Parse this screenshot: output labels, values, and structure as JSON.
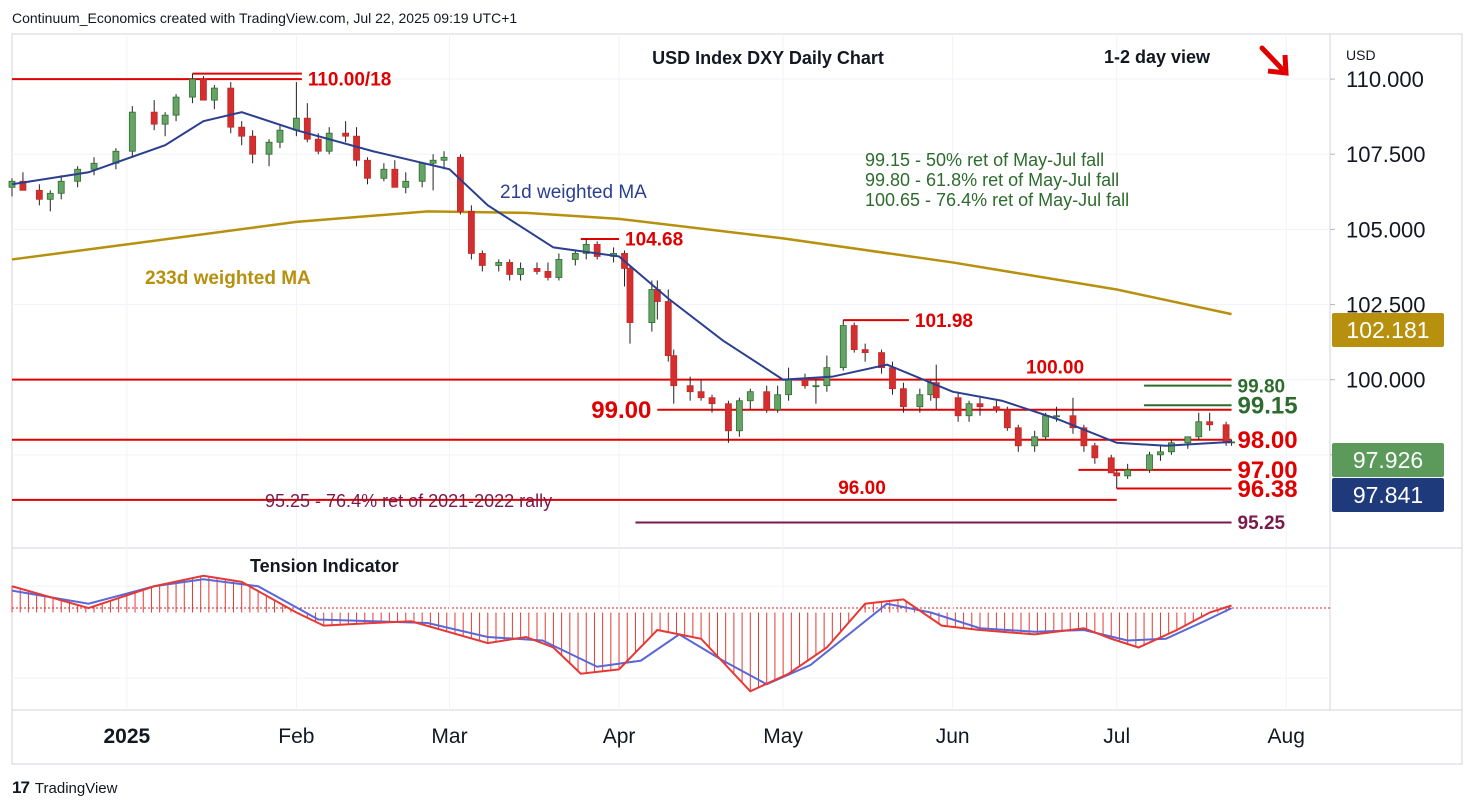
{
  "header": {
    "created_by": "Continuum_Economics created with TradingView.com, Jul 22, 2025 09:19 UTC+1"
  },
  "footer": {
    "brand_mark": "17",
    "brand_name": "TradingView"
  },
  "chart_data": {
    "type": "line",
    "title": "USD Index DXY Daily Chart",
    "subtitle": "1-2 day view",
    "direction_icon": "down-right-arrow-icon",
    "currency": "USD",
    "ylim": [
      94.4,
      111.5
    ],
    "y_ticks": [
      "110.000",
      "107.500",
      "105.000",
      "102.500",
      "100.000",
      "97.500"
    ],
    "x_ticks": [
      {
        "label": "2025",
        "x": "2025-01-01",
        "bold": true
      },
      {
        "label": "Feb",
        "x": "2025-02-01"
      },
      {
        "label": "Mar",
        "x": "2025-03-01"
      },
      {
        "label": "Apr",
        "x": "2025-04-01"
      },
      {
        "label": "May",
        "x": "2025-05-01"
      },
      {
        "label": "Jun",
        "x": "2025-06-01"
      },
      {
        "label": "Jul",
        "x": "2025-07-01"
      },
      {
        "label": "Aug",
        "x": "2025-08-01"
      }
    ],
    "x_range": [
      "2024-12-11",
      "2025-08-09"
    ],
    "price_badges": [
      {
        "label": "102.181",
        "value": 102.181,
        "color": "#b7900e"
      },
      {
        "label": "97.926",
        "value": 97.926,
        "color": "#5b9a5b"
      },
      {
        "label": "97.841",
        "value": 97.841,
        "color": "#1f3a7a"
      }
    ],
    "levels": [
      {
        "label": "110.00/18",
        "value": 110.0,
        "from": "2024-12-11",
        "to": "2025-02-02",
        "color": "#e00000",
        "size": "medium",
        "label_pos": "right"
      },
      {
        "label": "",
        "value": 110.18,
        "from": "2025-01-13",
        "to": "2025-02-02",
        "color": "#e00000",
        "size": "none",
        "label_pos": "none"
      },
      {
        "label": "104.68",
        "value": 104.68,
        "from": "2025-03-25",
        "to": "2025-04-01",
        "color": "#e00000",
        "size": "medium",
        "label_pos": "right"
      },
      {
        "label": "101.98",
        "value": 101.98,
        "from": "2025-05-12",
        "to": "2025-05-24",
        "color": "#e00000",
        "size": "medium",
        "label_pos": "right"
      },
      {
        "label": "100.00",
        "value": 100.0,
        "from": "2024-12-11",
        "to": "2025-07-22",
        "color": "#e00000",
        "size": "medium",
        "label_pos": "above-mid"
      },
      {
        "label": "99.80",
        "value": 99.8,
        "from": "2025-07-06",
        "to": "2025-07-22",
        "color": "#2e6b2e",
        "size": "medium",
        "label_pos": "right"
      },
      {
        "label": "99.15",
        "value": 99.15,
        "from": "2025-07-06",
        "to": "2025-07-22",
        "color": "#2e6b2e",
        "size": "large",
        "label_pos": "right"
      },
      {
        "label": "99.00",
        "value": 99.0,
        "from": "2025-04-08",
        "to": "2025-07-22",
        "color": "#e00000",
        "size": "large",
        "label_pos": "left"
      },
      {
        "label": "98.00",
        "value": 98.0,
        "from": "2024-12-11",
        "to": "2025-07-22",
        "color": "#e00000",
        "size": "large",
        "label_pos": "right"
      },
      {
        "label": "97.00",
        "value": 97.0,
        "from": "2025-06-24",
        "to": "2025-07-22",
        "color": "#e00000",
        "size": "large",
        "label_pos": "right"
      },
      {
        "label": "96.38",
        "value": 96.38,
        "from": "2025-07-01",
        "to": "2025-07-22",
        "color": "#e00000",
        "size": "large",
        "label_pos": "right"
      },
      {
        "label": "96.00",
        "value": 96.0,
        "from": "2024-12-11",
        "to": "2025-07-01",
        "color": "#e00000",
        "size": "medium",
        "label_pos": "above-mid"
      },
      {
        "label": "95.25",
        "value": 95.25,
        "from": "2025-04-04",
        "to": "2025-07-22",
        "color": "#7a1a4a",
        "size": "medium",
        "label_pos": "right"
      }
    ],
    "annotations": [
      {
        "text": "99.15 - 50% ret of May-Jul fall",
        "color": "#2e6b2e"
      },
      {
        "text": "99.80 - 61.8% ret of May-Jul fall",
        "color": "#2e6b2e"
      },
      {
        "text": "100.65 - 76.4% ret of May-Jul fall",
        "color": "#2e6b2e"
      },
      {
        "text": "95.25 - 76.4% ret of 2021-2022 rally",
        "color": "#7a1a4a"
      }
    ],
    "series_labels": {
      "ma21": {
        "name": "21d weighted MA",
        "color": "#2b3f8f"
      },
      "ma233": {
        "name": "233d weighted MA",
        "color": "#b7900e"
      }
    },
    "ma233_points": [
      [
        "2024-12-11",
        104.0
      ],
      [
        "2025-01-01",
        104.5
      ],
      [
        "2025-02-01",
        105.25
      ],
      [
        "2025-02-25",
        105.6
      ],
      [
        "2025-03-15",
        105.55
      ],
      [
        "2025-04-01",
        105.35
      ],
      [
        "2025-05-01",
        104.7
      ],
      [
        "2025-06-01",
        103.9
      ],
      [
        "2025-07-01",
        103.0
      ],
      [
        "2025-07-22",
        102.18
      ]
    ],
    "ma21_points": [
      [
        "2024-12-11",
        106.5
      ],
      [
        "2024-12-25",
        106.9
      ],
      [
        "2025-01-08",
        107.8
      ],
      [
        "2025-01-15",
        108.6
      ],
      [
        "2025-01-22",
        108.9
      ],
      [
        "2025-02-01",
        108.3
      ],
      [
        "2025-02-15",
        107.6
      ],
      [
        "2025-03-01",
        107.0
      ],
      [
        "2025-03-08",
        105.8
      ],
      [
        "2025-03-20",
        104.4
      ],
      [
        "2025-04-01",
        104.1
      ],
      [
        "2025-04-10",
        102.7
      ],
      [
        "2025-04-20",
        101.3
      ],
      [
        "2025-05-01",
        100.0
      ],
      [
        "2025-05-10",
        100.1
      ],
      [
        "2025-05-20",
        100.5
      ],
      [
        "2025-06-01",
        99.6
      ],
      [
        "2025-06-10",
        99.3
      ],
      [
        "2025-06-20",
        98.7
      ],
      [
        "2025-07-01",
        97.9
      ],
      [
        "2025-07-10",
        97.8
      ],
      [
        "2025-07-22",
        97.93
      ]
    ],
    "candles": [
      [
        "2024-12-11",
        106.4,
        106.7,
        106.1,
        106.6
      ],
      [
        "2024-12-13",
        106.6,
        106.9,
        106.3,
        106.3
      ],
      [
        "2024-12-16",
        106.3,
        106.5,
        105.8,
        106.0
      ],
      [
        "2024-12-18",
        106.0,
        106.3,
        105.6,
        106.2
      ],
      [
        "2024-12-20",
        106.2,
        106.8,
        106.0,
        106.6
      ],
      [
        "2024-12-23",
        106.6,
        107.1,
        106.4,
        107.0
      ],
      [
        "2024-12-26",
        107.0,
        107.4,
        106.8,
        107.2
      ],
      [
        "2024-12-30",
        107.2,
        107.7,
        107.0,
        107.6
      ],
      [
        "2025-01-02",
        107.6,
        109.1,
        107.4,
        108.9
      ],
      [
        "2025-01-06",
        108.9,
        109.3,
        108.3,
        108.5
      ],
      [
        "2025-01-08",
        108.5,
        108.9,
        108.1,
        108.8
      ],
      [
        "2025-01-10",
        108.8,
        109.5,
        108.6,
        109.4
      ],
      [
        "2025-01-13",
        109.4,
        110.18,
        109.2,
        110.0
      ],
      [
        "2025-01-15",
        110.0,
        110.1,
        109.3,
        109.3
      ],
      [
        "2025-01-17",
        109.3,
        109.8,
        109.0,
        109.7
      ],
      [
        "2025-01-20",
        109.7,
        109.9,
        108.2,
        108.4
      ],
      [
        "2025-01-22",
        108.4,
        108.6,
        107.8,
        108.1
      ],
      [
        "2025-01-24",
        108.1,
        108.3,
        107.2,
        107.5
      ],
      [
        "2025-01-27",
        107.5,
        108.0,
        107.1,
        107.9
      ],
      [
        "2025-01-29",
        107.9,
        108.5,
        107.7,
        108.3
      ],
      [
        "2025-02-01",
        108.3,
        109.9,
        108.1,
        108.7
      ],
      [
        "2025-02-03",
        108.7,
        109.2,
        107.9,
        108.0
      ],
      [
        "2025-02-05",
        108.0,
        108.2,
        107.5,
        107.6
      ],
      [
        "2025-02-07",
        107.6,
        108.4,
        107.5,
        108.2
      ],
      [
        "2025-02-10",
        108.2,
        108.6,
        107.9,
        108.1
      ],
      [
        "2025-02-12",
        108.1,
        108.4,
        107.1,
        107.3
      ],
      [
        "2025-02-14",
        107.3,
        107.4,
        106.5,
        106.7
      ],
      [
        "2025-02-17",
        106.7,
        107.2,
        106.6,
        107.0
      ],
      [
        "2025-02-19",
        107.0,
        107.3,
        106.4,
        106.4
      ],
      [
        "2025-02-21",
        106.4,
        106.9,
        106.2,
        106.6
      ],
      [
        "2025-02-24",
        106.6,
        107.2,
        106.4,
        107.2
      ],
      [
        "2025-02-26",
        107.2,
        107.5,
        106.3,
        107.3
      ],
      [
        "2025-02-28",
        107.3,
        107.6,
        107.0,
        107.4
      ],
      [
        "2025-03-03",
        107.4,
        107.5,
        105.5,
        105.6
      ],
      [
        "2025-03-05",
        105.6,
        105.8,
        104.0,
        104.2
      ],
      [
        "2025-03-07",
        104.2,
        104.3,
        103.6,
        103.8
      ],
      [
        "2025-03-10",
        103.8,
        104.0,
        103.6,
        103.9
      ],
      [
        "2025-03-12",
        103.9,
        104.0,
        103.3,
        103.5
      ],
      [
        "2025-03-14",
        103.5,
        103.9,
        103.3,
        103.7
      ],
      [
        "2025-03-17",
        103.7,
        103.9,
        103.5,
        103.6
      ],
      [
        "2025-03-19",
        103.6,
        103.9,
        103.3,
        103.4
      ],
      [
        "2025-03-21",
        103.4,
        104.2,
        103.3,
        104.0
      ],
      [
        "2025-03-24",
        104.0,
        104.3,
        103.8,
        104.2
      ],
      [
        "2025-03-26",
        104.2,
        104.68,
        104.0,
        104.5
      ],
      [
        "2025-03-28",
        104.5,
        104.6,
        104.0,
        104.1
      ],
      [
        "2025-03-31",
        104.1,
        104.4,
        103.9,
        104.2
      ],
      [
        "2025-04-02",
        104.2,
        104.3,
        103.1,
        103.7
      ],
      [
        "2025-04-03",
        103.7,
        103.8,
        101.2,
        101.9
      ],
      [
        "2025-04-07",
        101.9,
        103.3,
        101.6,
        103.0
      ],
      [
        "2025-04-08",
        103.0,
        103.3,
        102.0,
        102.6
      ],
      [
        "2025-04-10",
        102.6,
        103.0,
        100.6,
        100.8
      ],
      [
        "2025-04-11",
        100.8,
        101.0,
        99.2,
        99.8
      ],
      [
        "2025-04-14",
        99.8,
        100.1,
        99.3,
        99.6
      ],
      [
        "2025-04-16",
        99.6,
        100.0,
        99.3,
        99.4
      ],
      [
        "2025-04-18",
        99.4,
        99.5,
        98.9,
        99.2
      ],
      [
        "2025-04-21",
        99.2,
        99.3,
        97.9,
        98.3
      ],
      [
        "2025-04-23",
        98.3,
        99.4,
        98.1,
        99.3
      ],
      [
        "2025-04-25",
        99.3,
        99.7,
        99.0,
        99.6
      ],
      [
        "2025-04-28",
        99.6,
        99.8,
        98.9,
        99.0
      ],
      [
        "2025-04-30",
        99.0,
        99.8,
        98.9,
        99.5
      ],
      [
        "2025-05-02",
        99.5,
        100.4,
        99.3,
        100.0
      ],
      [
        "2025-05-05",
        100.0,
        100.2,
        99.7,
        99.8
      ],
      [
        "2025-05-07",
        99.8,
        100.0,
        99.2,
        99.8
      ],
      [
        "2025-05-09",
        99.8,
        100.8,
        99.6,
        100.4
      ],
      [
        "2025-05-12",
        100.4,
        101.98,
        100.3,
        101.8
      ],
      [
        "2025-05-14",
        101.8,
        101.9,
        100.9,
        101.0
      ],
      [
        "2025-05-16",
        101.0,
        101.2,
        100.6,
        100.9
      ],
      [
        "2025-05-19",
        100.9,
        101.0,
        100.2,
        100.4
      ],
      [
        "2025-05-21",
        100.4,
        100.6,
        99.5,
        99.7
      ],
      [
        "2025-05-23",
        99.7,
        99.9,
        98.9,
        99.1
      ],
      [
        "2025-05-26",
        99.1,
        99.7,
        98.9,
        99.5
      ],
      [
        "2025-05-28",
        99.5,
        100.0,
        99.3,
        99.9
      ],
      [
        "2025-05-29",
        99.9,
        100.5,
        99.0,
        99.4
      ],
      [
        "2025-06-02",
        99.4,
        99.6,
        98.6,
        98.8
      ],
      [
        "2025-06-04",
        98.8,
        99.3,
        98.6,
        99.2
      ],
      [
        "2025-06-06",
        99.2,
        99.4,
        98.8,
        99.1
      ],
      [
        "2025-06-09",
        99.1,
        99.3,
        98.9,
        99.0
      ],
      [
        "2025-06-11",
        99.0,
        99.1,
        98.3,
        98.4
      ],
      [
        "2025-06-13",
        98.4,
        98.5,
        97.6,
        97.8
      ],
      [
        "2025-06-16",
        97.8,
        98.3,
        97.6,
        98.1
      ],
      [
        "2025-06-18",
        98.1,
        98.9,
        98.0,
        98.8
      ],
      [
        "2025-06-20",
        98.8,
        99.1,
        98.6,
        98.8
      ],
      [
        "2025-06-23",
        98.8,
        99.4,
        98.2,
        98.4
      ],
      [
        "2025-06-25",
        98.4,
        98.5,
        97.6,
        97.8
      ],
      [
        "2025-06-27",
        97.8,
        97.9,
        97.2,
        97.4
      ],
      [
        "2025-06-30",
        97.4,
        97.5,
        96.9,
        96.9
      ],
      [
        "2025-07-01",
        96.9,
        97.0,
        96.38,
        96.8
      ],
      [
        "2025-07-03",
        96.8,
        97.2,
        96.7,
        97.0
      ],
      [
        "2025-07-07",
        97.0,
        97.6,
        96.9,
        97.5
      ],
      [
        "2025-07-09",
        97.5,
        97.8,
        97.3,
        97.6
      ],
      [
        "2025-07-11",
        97.6,
        98.0,
        97.5,
        97.9
      ],
      [
        "2025-07-14",
        97.9,
        98.1,
        97.7,
        98.1
      ],
      [
        "2025-07-16",
        98.1,
        98.9,
        98.0,
        98.6
      ],
      [
        "2025-07-18",
        98.6,
        98.9,
        98.3,
        98.5
      ],
      [
        "2025-07-21",
        98.5,
        98.6,
        97.8,
        97.9
      ],
      [
        "2025-07-22",
        97.9,
        98.0,
        97.8,
        97.93
      ]
    ],
    "indicator": {
      "name": "Tension Indicator",
      "ylim": [
        -1.0,
        0.6
      ],
      "fast": [
        [
          "2024-12-11",
          0.3
        ],
        [
          "2024-12-25",
          0.05
        ],
        [
          "2025-01-06",
          0.3
        ],
        [
          "2025-01-15",
          0.42
        ],
        [
          "2025-01-22",
          0.35
        ],
        [
          "2025-02-01",
          0.0
        ],
        [
          "2025-02-06",
          -0.15
        ],
        [
          "2025-02-15",
          -0.12
        ],
        [
          "2025-02-22",
          -0.1
        ],
        [
          "2025-03-08",
          -0.35
        ],
        [
          "2025-03-15",
          -0.28
        ],
        [
          "2025-03-20",
          -0.4
        ],
        [
          "2025-03-25",
          -0.7
        ],
        [
          "2025-04-01",
          -0.65
        ],
        [
          "2025-04-08",
          -0.2
        ],
        [
          "2025-04-16",
          -0.3
        ],
        [
          "2025-04-25",
          -0.9
        ],
        [
          "2025-05-02",
          -0.7
        ],
        [
          "2025-05-09",
          -0.4
        ],
        [
          "2025-05-16",
          0.1
        ],
        [
          "2025-05-23",
          0.15
        ],
        [
          "2025-05-30",
          -0.15
        ],
        [
          "2025-06-06",
          -0.2
        ],
        [
          "2025-06-16",
          -0.25
        ],
        [
          "2025-06-25",
          -0.18
        ],
        [
          "2025-06-30",
          -0.3
        ],
        [
          "2025-07-05",
          -0.4
        ],
        [
          "2025-07-12",
          -0.2
        ],
        [
          "2025-07-18",
          0.0
        ],
        [
          "2025-07-22",
          0.08
        ]
      ],
      "slow": [
        [
          "2024-12-11",
          0.25
        ],
        [
          "2024-12-25",
          0.1
        ],
        [
          "2025-01-06",
          0.3
        ],
        [
          "2025-01-15",
          0.38
        ],
        [
          "2025-01-25",
          0.3
        ],
        [
          "2025-02-05",
          -0.08
        ],
        [
          "2025-02-15",
          -0.1
        ],
        [
          "2025-02-25",
          -0.12
        ],
        [
          "2025-03-08",
          -0.28
        ],
        [
          "2025-03-18",
          -0.32
        ],
        [
          "2025-03-28",
          -0.62
        ],
        [
          "2025-04-05",
          -0.55
        ],
        [
          "2025-04-12",
          -0.25
        ],
        [
          "2025-04-20",
          -0.55
        ],
        [
          "2025-04-28",
          -0.82
        ],
        [
          "2025-05-06",
          -0.6
        ],
        [
          "2025-05-14",
          -0.2
        ],
        [
          "2025-05-20",
          0.1
        ],
        [
          "2025-05-28",
          0.0
        ],
        [
          "2025-06-06",
          -0.18
        ],
        [
          "2025-06-16",
          -0.22
        ],
        [
          "2025-06-25",
          -0.2
        ],
        [
          "2025-07-03",
          -0.32
        ],
        [
          "2025-07-10",
          -0.3
        ],
        [
          "2025-07-17",
          -0.1
        ],
        [
          "2025-07-22",
          0.05
        ]
      ]
    }
  }
}
